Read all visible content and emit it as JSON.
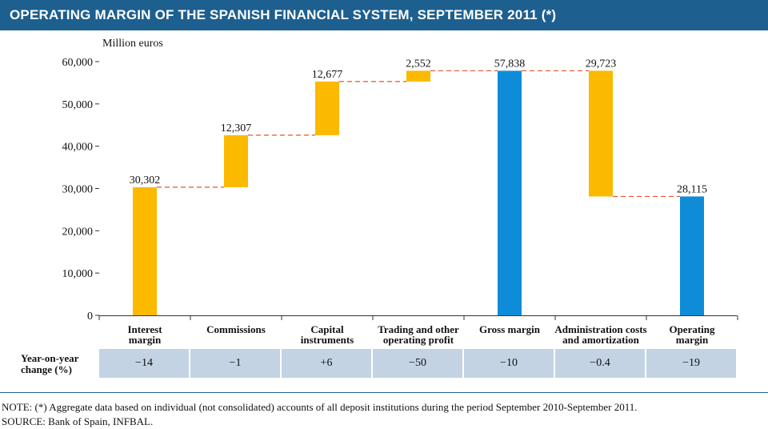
{
  "title": "OPERATING MARGIN OF THE SPANISH FINANCIAL SYSTEM, SEPTEMBER 2011 (*)",
  "colors": {
    "title_bg": "#1d5f8f",
    "flow_bar": "#fbb900",
    "total_bar": "#0f8cd7",
    "connector": "#e0552b",
    "change_cell": "#c3d3e3"
  },
  "chart_data": {
    "type": "bar",
    "subtype": "waterfall",
    "ylabel": "Million euros",
    "ylim": [
      0,
      60000
    ],
    "yticks": [
      0,
      10000,
      20000,
      30000,
      40000,
      50000,
      60000
    ],
    "ytick_labels": [
      "0",
      "10,000",
      "20,000",
      "30,000",
      "40,000",
      "50,000",
      "60,000"
    ],
    "grid": false,
    "bars": [
      {
        "category": [
          "Interest",
          "margin"
        ],
        "value": 30302,
        "label": "30,302",
        "start": 0,
        "end": 30302,
        "kind": "increase"
      },
      {
        "category": [
          "Commissions"
        ],
        "value": 12307,
        "label": "12,307",
        "start": 30302,
        "end": 42609,
        "kind": "increase"
      },
      {
        "category": [
          "Capital",
          "instruments"
        ],
        "value": 12677,
        "label": "12,677",
        "start": 42609,
        "end": 55286,
        "kind": "increase"
      },
      {
        "category": [
          "Trading and other",
          "operating profit"
        ],
        "value": 2552,
        "label": "2,552",
        "start": 55286,
        "end": 57838,
        "kind": "increase"
      },
      {
        "category": [
          "Gross margin"
        ],
        "value": 57838,
        "label": "57,838",
        "start": 0,
        "end": 57838,
        "kind": "total"
      },
      {
        "category": [
          "Administration costs",
          "and amortization"
        ],
        "value": 29723,
        "label": "29,723",
        "start": 28115,
        "end": 57838,
        "kind": "decrease"
      },
      {
        "category": [
          "Operating",
          "margin"
        ],
        "value": 28115,
        "label": "28,115",
        "start": 0,
        "end": 28115,
        "kind": "total"
      }
    ]
  },
  "change_table": {
    "label": [
      "Year-on-year",
      "change (%)"
    ],
    "values": [
      "−14",
      "−1",
      "+6",
      "−50",
      "−10",
      "−0.4",
      "−19"
    ]
  },
  "note": "NOTE: (*) Aggregate data based on individual (not consolidated) accounts of all deposit institutions during the period September 2010-September 2011.",
  "source": "SOURCE: Bank of Spain, INFBAL."
}
